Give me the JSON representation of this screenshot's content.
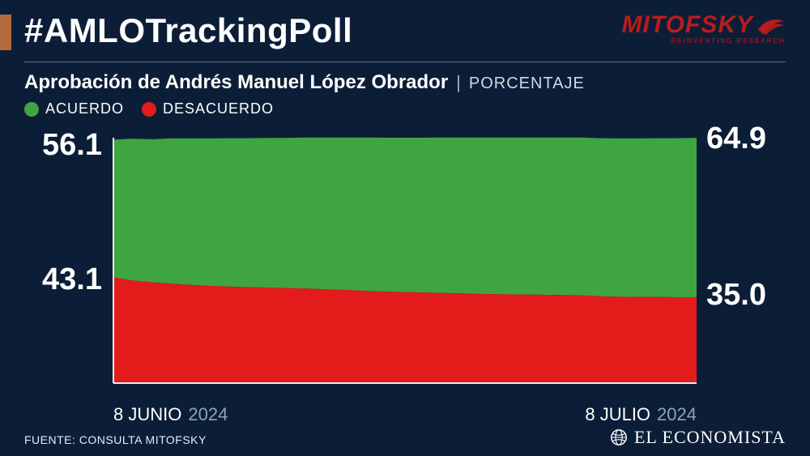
{
  "colors": {
    "background": "#0c1e37",
    "accent_bar": "#b56a3c",
    "text": "#ffffff",
    "muted": "#8da3bd",
    "brand": "#b91c1c",
    "agree": "#3fa541",
    "disagree": "#e31b1b",
    "divider": "rgba(255,255,255,0.35)",
    "axis": "#e6edf5"
  },
  "header": {
    "hashtag": "#AMLOTrackingPoll",
    "brand_name": "MITOFSKY",
    "brand_tagline": "REINVENTING RESEARCH"
  },
  "subtitle": {
    "text": "Aprobación de Andrés Manuel López Obrador",
    "separator": "|",
    "metric": "PORCENTAJE"
  },
  "legend": [
    {
      "label": "ACUERDO",
      "color": "#3fa541"
    },
    {
      "label": "DESACUERDO",
      "color": "#e31b1b"
    }
  ],
  "chart": {
    "type": "area-stacked",
    "xlim": [
      0,
      30
    ],
    "ylim": [
      0,
      100
    ],
    "axis_color": "#e6edf5",
    "axis_width": 2,
    "series": {
      "acuerdo": {
        "color": "#3fa541",
        "values": [
          56.1,
          57.8,
          58.3,
          59.2,
          59.7,
          60.1,
          60.5,
          60.7,
          61.0,
          61.2,
          61.6,
          61.9,
          62.2,
          62.5,
          62.7,
          62.9,
          63.1,
          63.4,
          63.6,
          63.8,
          63.9,
          64.0,
          64.1,
          64.2,
          64.3,
          64.4,
          64.5,
          64.6,
          64.7,
          64.8,
          64.9
        ]
      },
      "desacuerdo": {
        "color": "#e31b1b",
        "values": [
          43.1,
          41.8,
          41.1,
          40.5,
          40.0,
          39.6,
          39.3,
          39.1,
          38.9,
          38.7,
          38.5,
          38.2,
          37.9,
          37.6,
          37.3,
          37.1,
          36.9,
          36.7,
          36.5,
          36.3,
          36.2,
          36.1,
          36.0,
          35.9,
          35.8,
          35.4,
          35.2,
          35.1,
          35.1,
          35.0,
          35.0
        ]
      }
    },
    "start_labels": {
      "acuerdo": "56.1",
      "desacuerdo": "43.1"
    },
    "end_labels": {
      "acuerdo": "64.9",
      "desacuerdo": "35.0"
    },
    "label_fontsize": 38,
    "label_fontweight": 800
  },
  "xaxis": {
    "start": {
      "date": "8 JUNIO",
      "year": "2024"
    },
    "end": {
      "date": "8 JULIO",
      "year": "2024"
    }
  },
  "footer": {
    "source": "FUENTE: CONSULTA MITOFSKY",
    "publisher": "EL ECONOMISTA"
  }
}
